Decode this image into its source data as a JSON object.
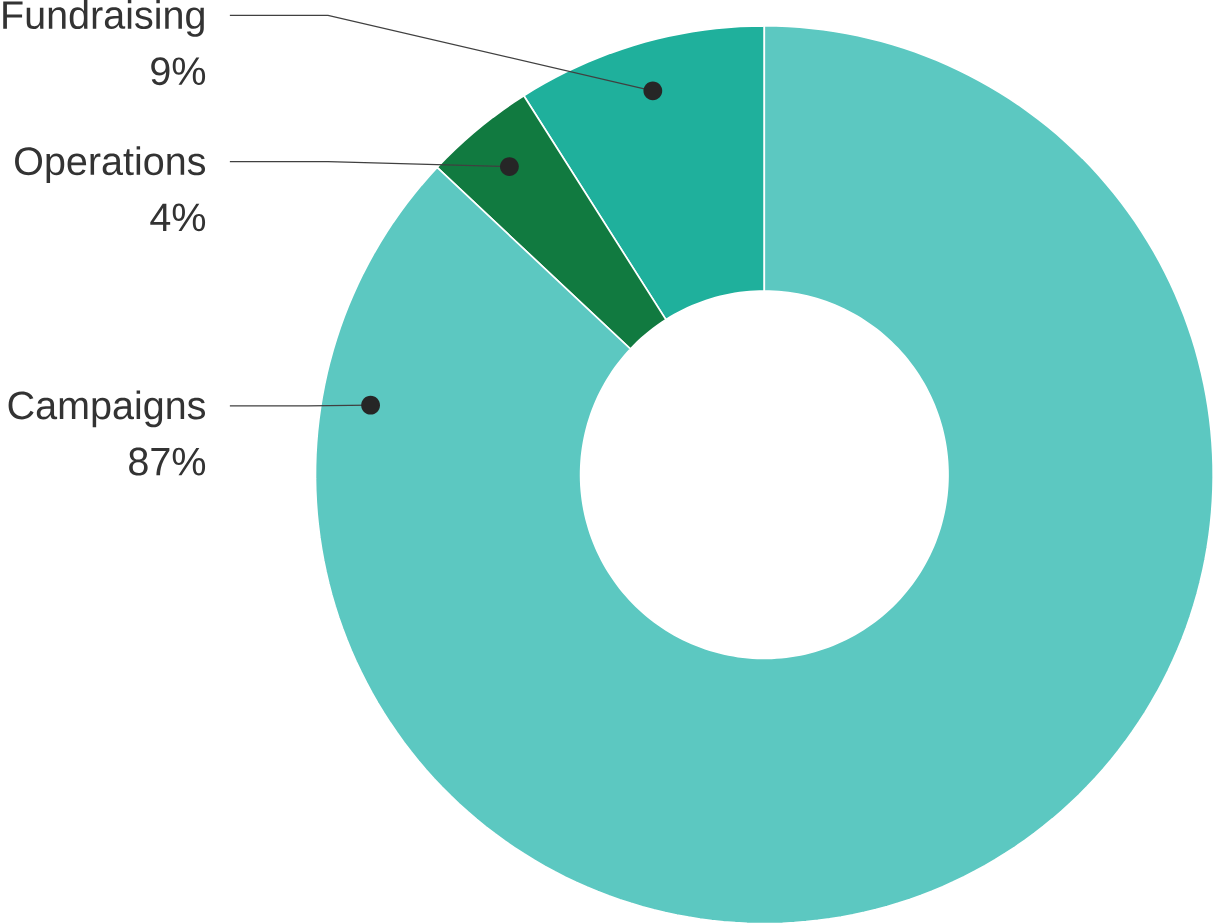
{
  "chart_data": {
    "type": "donut",
    "categories": [
      "Fundraising",
      "Operations",
      "Campaigns"
    ],
    "values": [
      9,
      4,
      87
    ],
    "colors": [
      "#1fb09c",
      "#117a40",
      "#5cc8c1"
    ],
    "value_labels": [
      "9%",
      "4%",
      "87%"
    ]
  }
}
